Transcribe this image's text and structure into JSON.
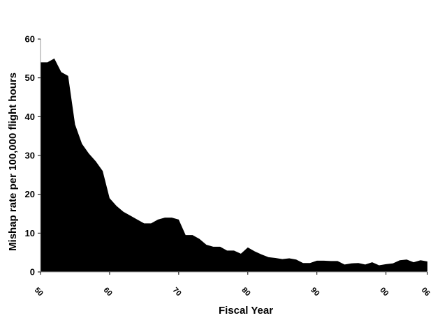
{
  "chart_data": {
    "type": "area",
    "title": "",
    "xlabel": "Fiscal Year",
    "ylabel": "Mishap rate per 100,000 flight hours",
    "xlim": [
      1950,
      2006
    ],
    "ylim": [
      0,
      60
    ],
    "y_ticks": [
      0,
      10,
      20,
      30,
      40,
      50,
      60
    ],
    "x_ticks": [
      {
        "value": 1950,
        "label": "50"
      },
      {
        "value": 1960,
        "label": "60"
      },
      {
        "value": 1970,
        "label": "70"
      },
      {
        "value": 1980,
        "label": "80"
      },
      {
        "value": 1990,
        "label": "90"
      },
      {
        "value": 2000,
        "label": "00"
      },
      {
        "value": 2006,
        "label": "06"
      }
    ],
    "grid": false,
    "legend": false,
    "fill_color": "#000000",
    "series": [
      {
        "x": [
          1950,
          1951,
          1952,
          1953,
          1954,
          1955,
          1956,
          1957,
          1958,
          1959,
          1960,
          1961,
          1962,
          1963,
          1964,
          1965,
          1966,
          1967,
          1968,
          1969,
          1970,
          1971,
          1972,
          1973,
          1974,
          1975,
          1976,
          1977,
          1978,
          1979,
          1980,
          1981,
          1982,
          1983,
          1984,
          1985,
          1986,
          1987,
          1988,
          1989,
          1990,
          1991,
          1992,
          1993,
          1994,
          1995,
          1996,
          1997,
          1998,
          1999,
          2000,
          2001,
          2002,
          2003,
          2004,
          2005,
          2006
        ],
        "y": [
          54,
          54,
          55,
          51.5,
          50.5,
          38,
          33,
          30.5,
          28.5,
          26,
          19,
          17,
          15.5,
          14.5,
          13.5,
          12.5,
          12.5,
          13.5,
          14,
          14,
          13.5,
          9.5,
          9.5,
          8.5,
          7,
          6.5,
          6.5,
          5.5,
          5.5,
          4.7,
          6.3,
          5.3,
          4.5,
          3.8,
          3.6,
          3.3,
          3.5,
          3.2,
          2.3,
          2.3,
          2.9,
          2.9,
          2.8,
          2.8,
          1.9,
          2.2,
          2.3,
          1.9,
          2.5,
          1.7,
          2.0,
          2.2,
          3.0,
          3.2,
          2.5,
          3.0,
          2.7
        ]
      }
    ]
  }
}
